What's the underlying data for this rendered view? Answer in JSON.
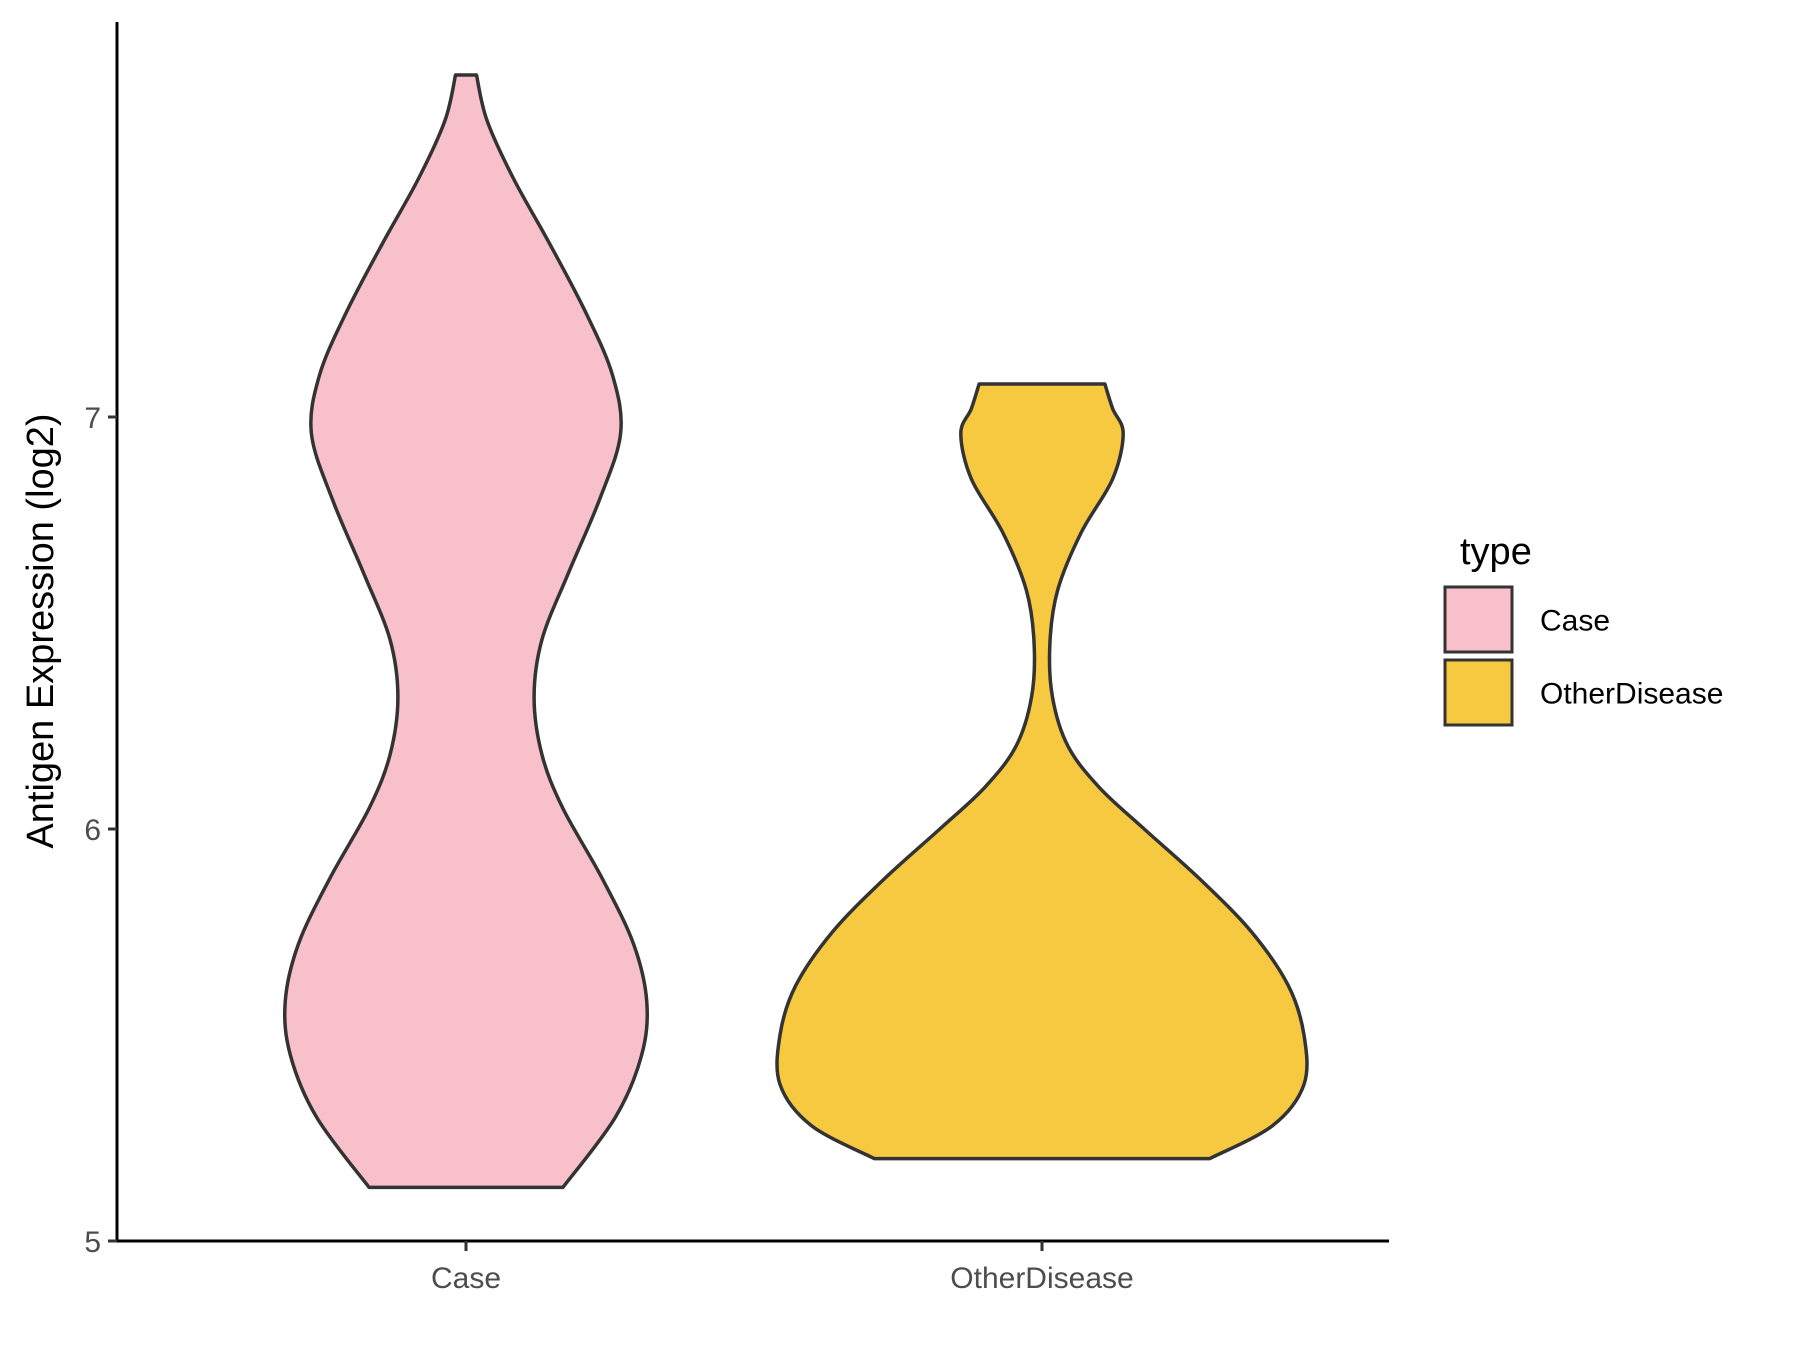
{
  "chart_data": {
    "type": "violin",
    "title": "",
    "xlabel": "",
    "ylabel": "Antigen Expression (log2)",
    "ylim": [
      5,
      7.97
    ],
    "yticks": [
      5,
      6,
      7
    ],
    "categories": [
      "Case",
      "OtherDisease"
    ],
    "grid": false,
    "legend": {
      "title": "type",
      "position": "right",
      "entries": [
        "Case",
        "OtherDisease"
      ]
    },
    "series": [
      {
        "name": "Case",
        "color": "#F7C0CB",
        "y_min": 5.13,
        "y_max": 7.83,
        "density_profile": [
          [
            5.13,
            0.37
          ],
          [
            5.3,
            0.57
          ],
          [
            5.45,
            0.67
          ],
          [
            5.58,
            0.69
          ],
          [
            5.72,
            0.64
          ],
          [
            5.88,
            0.52
          ],
          [
            6.05,
            0.37
          ],
          [
            6.18,
            0.29
          ],
          [
            6.32,
            0.26
          ],
          [
            6.46,
            0.29
          ],
          [
            6.62,
            0.39
          ],
          [
            6.8,
            0.51
          ],
          [
            6.96,
            0.59
          ],
          [
            7.1,
            0.56
          ],
          [
            7.25,
            0.46
          ],
          [
            7.42,
            0.32
          ],
          [
            7.58,
            0.18
          ],
          [
            7.72,
            0.08
          ],
          [
            7.83,
            0.04
          ]
        ]
      },
      {
        "name": "OtherDisease",
        "color": "#F6C940",
        "y_min": 5.2,
        "y_max": 7.08,
        "density_profile": [
          [
            5.2,
            0.64
          ],
          [
            5.28,
            0.88
          ],
          [
            5.38,
            1.0
          ],
          [
            5.5,
            1.0
          ],
          [
            5.62,
            0.94
          ],
          [
            5.75,
            0.8
          ],
          [
            5.88,
            0.6
          ],
          [
            6.0,
            0.39
          ],
          [
            6.1,
            0.22
          ],
          [
            6.2,
            0.1
          ],
          [
            6.32,
            0.04
          ],
          [
            6.45,
            0.03
          ],
          [
            6.58,
            0.06
          ],
          [
            6.72,
            0.15
          ],
          [
            6.85,
            0.27
          ],
          [
            6.96,
            0.31
          ],
          [
            7.02,
            0.27
          ],
          [
            7.08,
            0.24
          ]
        ]
      }
    ]
  }
}
